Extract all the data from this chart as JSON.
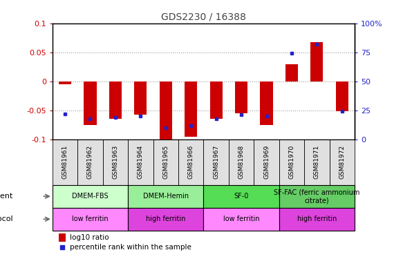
{
  "title": "GDS2230 / 16388",
  "samples": [
    "GSM81961",
    "GSM81962",
    "GSM81963",
    "GSM81964",
    "GSM81965",
    "GSM81966",
    "GSM81967",
    "GSM81968",
    "GSM81969",
    "GSM81970",
    "GSM81971",
    "GSM81972"
  ],
  "log10_ratio": [
    -0.005,
    -0.075,
    -0.065,
    -0.058,
    -0.1,
    -0.095,
    -0.065,
    -0.055,
    -0.075,
    0.03,
    0.068,
    -0.052
  ],
  "percentile_rank": [
    22,
    18,
    19,
    20,
    10,
    12,
    18,
    21,
    20,
    74,
    82,
    24
  ],
  "ylim": [
    -0.1,
    0.1
  ],
  "yticks_left": [
    -0.1,
    -0.05,
    0.0,
    0.05,
    0.1
  ],
  "yticks_left_labels": [
    "-0.1",
    "-0.05",
    "0",
    "0.05",
    "0.1"
  ],
  "yticks_right": [
    0,
    25,
    50,
    75,
    100
  ],
  "yticks_right_labels": [
    "0",
    "25",
    "50",
    "75",
    "100%"
  ],
  "bar_color": "#cc0000",
  "dot_color": "#2222cc",
  "agent_groups": [
    {
      "label": "DMEM-FBS",
      "start": 0,
      "end": 3,
      "color": "#ccffcc"
    },
    {
      "label": "DMEM-Hemin",
      "start": 3,
      "end": 6,
      "color": "#99ee99"
    },
    {
      "label": "SF-0",
      "start": 6,
      "end": 9,
      "color": "#55dd55"
    },
    {
      "label": "SF-FAC (ferric ammonium\ncitrate)",
      "start": 9,
      "end": 12,
      "color": "#66cc66"
    }
  ],
  "growth_groups": [
    {
      "label": "low ferritin",
      "start": 0,
      "end": 3,
      "color": "#ff88ff"
    },
    {
      "label": "high ferritin",
      "start": 3,
      "end": 6,
      "color": "#dd44dd"
    },
    {
      "label": "low ferritin",
      "start": 6,
      "end": 9,
      "color": "#ff88ff"
    },
    {
      "label": "high ferritin",
      "start": 9,
      "end": 12,
      "color": "#dd44dd"
    }
  ],
  "legend_bar_label": "log10 ratio",
  "legend_dot_label": "percentile rank within the sample",
  "left_axis_color": "#cc0000",
  "right_axis_color": "#2222cc",
  "title_color": "#444444"
}
